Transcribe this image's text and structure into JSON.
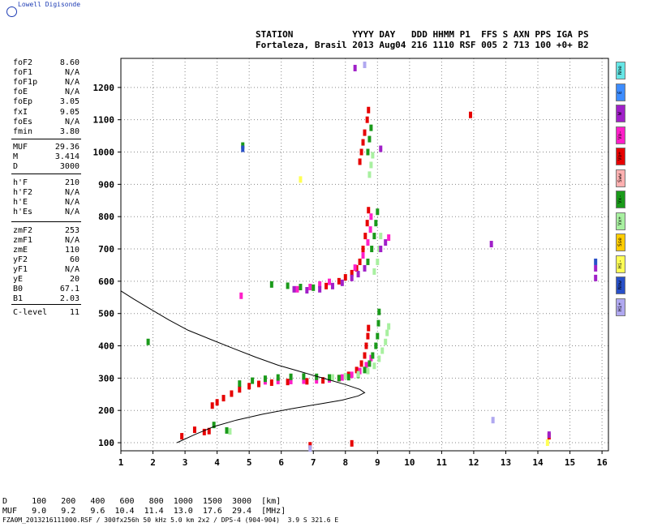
{
  "brand": "Lowell Digisonde",
  "header": {
    "line1": "STATION           YYYY DAY   DDD HHMM P1  FFS S AXN PPS IGA PS",
    "line2": "Fortaleza, Brasil 2013 Aug04 216 1110 RSF 005 2 713 100 +0+ B2"
  },
  "params": [
    {
      "label": "foF2",
      "value": "8.60"
    },
    {
      "label": "foF1",
      "value": "N/A"
    },
    {
      "label": "foF1p",
      "value": "N/A"
    },
    {
      "label": "foE",
      "value": "N/A"
    },
    {
      "label": "foEp",
      "value": "3.05"
    },
    {
      "label": "fxI",
      "value": "9.05"
    },
    {
      "label": "foEs",
      "value": "N/A"
    },
    {
      "label": "fmin",
      "value": "3.80"
    },
    {
      "label": "MUF",
      "value": "29.36"
    },
    {
      "label": "M",
      "value": "3.414"
    },
    {
      "label": "D",
      "value": "3000"
    },
    {
      "label": "h'F",
      "value": "210"
    },
    {
      "label": "h'F2",
      "value": "N/A"
    },
    {
      "label": "h'E",
      "value": "N/A"
    },
    {
      "label": "h'Es",
      "value": "N/A"
    },
    {
      "label": "zmF2",
      "value": "253"
    },
    {
      "label": "zmF1",
      "value": "N/A"
    },
    {
      "label": "zmE",
      "value": "110"
    },
    {
      "label": "yF2",
      "value": "60"
    },
    {
      "label": "yF1",
      "value": "N/A"
    },
    {
      "label": "yE",
      "value": "20"
    },
    {
      "label": "B0",
      "value": "67.1"
    },
    {
      "label": "B1",
      "value": "2.03"
    },
    {
      "label": "C-level",
      "value": "11"
    }
  ],
  "legend": [
    {
      "label": "Nne",
      "color": "#66e6e6"
    },
    {
      "label": "E",
      "color": "#3d8cff"
    },
    {
      "label": "W",
      "color": "#a020c8"
    },
    {
      "label": "Vo-",
      "color": "#ff1fc8"
    },
    {
      "label": "Vo+",
      "color": "#e60000"
    },
    {
      "label": "Sww",
      "color": "#ffb0b0"
    },
    {
      "label": "Vx-",
      "color": "#1a9a1a"
    },
    {
      "label": "Vx+",
      "color": "#a8f0a0"
    },
    {
      "label": "Sse",
      "color": "#ffcc00"
    },
    {
      "label": "Hi-",
      "color": "#ffff55"
    },
    {
      "label": "Nnw",
      "color": "#2850c8"
    },
    {
      "label": "Hi+",
      "color": "#b0a8f0"
    }
  ],
  "footer": {
    "d_row": "D     100   200   400   600   800  1000  1500  3000  [km]",
    "muf_row": "MUF   9.0   9.2   9.6  10.4  11.4  13.0  17.6  29.4  [MHz]",
    "info": "FZA0M_2013216111000.RSF / 300fx256h 50 kHz 5.0 km 2x2 / DPS-4 (904-904)  3.9 S 321.6 E"
  },
  "chart_data": {
    "type": "scatter",
    "xlabel": "",
    "ylabel": "",
    "xlim": [
      1,
      16.2
    ],
    "ylim": [
      75,
      1290
    ],
    "x_ticks": [
      1,
      2,
      3,
      4,
      5,
      6,
      7,
      8,
      9,
      10,
      11,
      12,
      13,
      14,
      15,
      16
    ],
    "y_ticks": [
      100,
      200,
      300,
      400,
      500,
      600,
      700,
      800,
      900,
      1000,
      1100,
      1200
    ],
    "grid": true,
    "profile_curve": [
      [
        2.75,
        100
      ],
      [
        3.3,
        125
      ],
      [
        3.9,
        150
      ],
      [
        4.6,
        170
      ],
      [
        5.4,
        188
      ],
      [
        6.3,
        205
      ],
      [
        7.2,
        220
      ],
      [
        7.9,
        232
      ],
      [
        8.4,
        245
      ],
      [
        8.6,
        255
      ],
      [
        8.45,
        265
      ],
      [
        8.0,
        280
      ],
      [
        7.3,
        300
      ],
      [
        6.6,
        320
      ],
      [
        5.9,
        340
      ],
      [
        5.2,
        365
      ],
      [
        4.5,
        392
      ],
      [
        3.8,
        420
      ],
      [
        3.1,
        448
      ],
      [
        2.5,
        480
      ],
      [
        1.9,
        515
      ],
      [
        1.4,
        545
      ],
      [
        1.0,
        570
      ]
    ],
    "traces": [
      {
        "name": "Vo+",
        "color": "#e60000",
        "points": [
          [
            3.85,
            215
          ],
          [
            4.0,
            225
          ],
          [
            4.2,
            238
          ],
          [
            4.45,
            252
          ],
          [
            4.7,
            265
          ],
          [
            5.0,
            275
          ],
          [
            5.3,
            282
          ],
          [
            5.7,
            286
          ],
          [
            6.2,
            288
          ],
          [
            6.8,
            290
          ],
          [
            7.3,
            293
          ],
          [
            7.8,
            300
          ],
          [
            8.1,
            310
          ],
          [
            8.35,
            325
          ],
          [
            8.5,
            345
          ],
          [
            8.6,
            370
          ],
          [
            8.65,
            400
          ],
          [
            8.7,
            430
          ],
          [
            8.72,
            455
          ],
          [
            7.4,
            585
          ],
          [
            7.8,
            600
          ],
          [
            8.0,
            612
          ],
          [
            8.2,
            625
          ],
          [
            8.35,
            640
          ],
          [
            8.45,
            660
          ],
          [
            8.55,
            700
          ],
          [
            8.62,
            740
          ],
          [
            8.68,
            780
          ],
          [
            8.72,
            820
          ],
          [
            8.45,
            970
          ],
          [
            8.5,
            1000
          ],
          [
            8.55,
            1030
          ],
          [
            8.6,
            1060
          ],
          [
            8.68,
            1100
          ],
          [
            8.72,
            1130
          ],
          [
            3.6,
            133
          ],
          [
            3.75,
            136
          ],
          [
            2.9,
            120
          ],
          [
            3.3,
            140
          ],
          [
            11.9,
            1115
          ],
          [
            14.35,
            120
          ],
          [
            6.9,
            92
          ],
          [
            8.2,
            98
          ]
        ]
      },
      {
        "name": "Vo-",
        "color": "#ff1fc8",
        "points": [
          [
            5.5,
            290
          ],
          [
            5.9,
            291
          ],
          [
            6.3,
            291
          ],
          [
            6.7,
            292
          ],
          [
            7.1,
            293
          ],
          [
            7.5,
            296
          ],
          [
            7.9,
            302
          ],
          [
            8.2,
            310
          ],
          [
            8.45,
            322
          ],
          [
            8.65,
            340
          ],
          [
            8.8,
            362
          ],
          [
            6.5,
            575
          ],
          [
            6.9,
            582
          ],
          [
            7.2,
            590
          ],
          [
            7.5,
            598
          ],
          [
            8.3,
            642
          ],
          [
            8.55,
            680
          ],
          [
            8.7,
            720
          ],
          [
            8.78,
            760
          ],
          [
            8.8,
            800
          ],
          [
            4.75,
            555
          ],
          [
            9.35,
            735
          ]
        ]
      },
      {
        "name": "Vx-",
        "color": "#1a9a1a",
        "points": [
          [
            4.7,
            283
          ],
          [
            5.1,
            292
          ],
          [
            5.5,
            298
          ],
          [
            5.9,
            302
          ],
          [
            6.3,
            304
          ],
          [
            6.7,
            305
          ],
          [
            7.1,
            304
          ],
          [
            7.5,
            302
          ],
          [
            7.8,
            300
          ],
          [
            8.1,
            303
          ],
          [
            8.4,
            310
          ],
          [
            8.6,
            325
          ],
          [
            8.75,
            345
          ],
          [
            8.85,
            370
          ],
          [
            8.95,
            400
          ],
          [
            9.0,
            430
          ],
          [
            9.03,
            470
          ],
          [
            9.05,
            505
          ],
          [
            5.7,
            590
          ],
          [
            6.2,
            586
          ],
          [
            6.6,
            582
          ],
          [
            7.0,
            580
          ],
          [
            8.7,
            660
          ],
          [
            8.82,
            700
          ],
          [
            8.9,
            740
          ],
          [
            8.95,
            780
          ],
          [
            9.0,
            815
          ],
          [
            8.7,
            1000
          ],
          [
            8.75,
            1040
          ],
          [
            8.8,
            1075
          ],
          [
            4.8,
            1020
          ],
          [
            3.9,
            155
          ],
          [
            4.3,
            138
          ],
          [
            1.85,
            412
          ]
        ]
      },
      {
        "name": "Vx+",
        "color": "#a8f0a0",
        "points": [
          [
            7.6,
            302
          ],
          [
            8.0,
            306
          ],
          [
            8.4,
            312
          ],
          [
            8.7,
            322
          ],
          [
            8.9,
            338
          ],
          [
            9.05,
            360
          ],
          [
            9.15,
            385
          ],
          [
            9.25,
            412
          ],
          [
            9.3,
            440
          ],
          [
            9.35,
            460
          ],
          [
            8.9,
            630
          ],
          [
            9.0,
            660
          ],
          [
            9.05,
            700
          ],
          [
            9.1,
            740
          ],
          [
            8.75,
            930
          ],
          [
            8.8,
            960
          ],
          [
            8.85,
            990
          ],
          [
            4.4,
            135
          ]
        ]
      },
      {
        "name": "W",
        "color": "#a020c8",
        "points": [
          [
            6.4,
            575
          ],
          [
            6.8,
            572
          ],
          [
            7.2,
            575
          ],
          [
            7.6,
            585
          ],
          [
            7.9,
            595
          ],
          [
            8.2,
            610
          ],
          [
            8.4,
            622
          ],
          [
            8.6,
            640
          ],
          [
            9.1,
            700
          ],
          [
            9.25,
            720
          ],
          [
            8.3,
            1260
          ],
          [
            9.1,
            1010
          ],
          [
            15.8,
            640
          ],
          [
            15.8,
            610
          ],
          [
            12.55,
            715
          ],
          [
            14.35,
            125
          ]
        ]
      },
      {
        "name": "Hi+",
        "color": "#b0a8f0",
        "points": [
          [
            8.6,
            1270
          ],
          [
            12.6,
            170
          ],
          [
            6.9,
            82
          ]
        ]
      },
      {
        "name": "Hi-",
        "color": "#ffff55",
        "points": [
          [
            6.6,
            915
          ],
          [
            14.3,
            100
          ]
        ]
      },
      {
        "name": "Nnw",
        "color": "#2850c8",
        "points": [
          [
            4.8,
            1010
          ],
          [
            15.8,
            660
          ]
        ]
      }
    ]
  }
}
